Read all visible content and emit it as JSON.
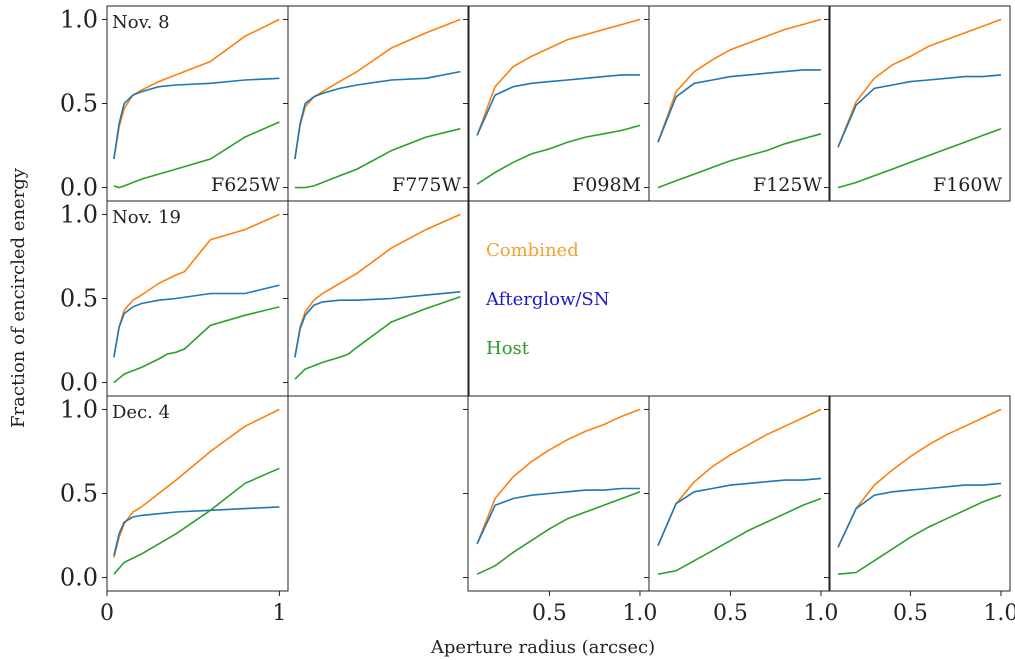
{
  "figure": {
    "ylabel": "Fraction of encircled energy",
    "xlabel": "Aperture radius (arcsec)",
    "legend": [
      {
        "label": "Combined",
        "color": "#f5a030"
      },
      {
        "label": "Afterglow/SN",
        "color": "#1a1acc"
      },
      {
        "label": "Host",
        "color": "#2a9a2a"
      }
    ],
    "series_colors": {
      "combined": "#ff7f0e",
      "afterglow": "#1f77b4",
      "host": "#2ca02c"
    }
  },
  "chart_data": [
    {
      "type": "line",
      "row": 0,
      "col": 0,
      "date": "Nov. 8",
      "filter": "F625W",
      "xlim": [
        0,
        1.05
      ],
      "ylim": [
        -0.08,
        1.08
      ],
      "yticks": [
        "0.0",
        "0.5",
        "1.0"
      ],
      "xticks": [],
      "series": [
        {
          "key": "combined",
          "x": [
            0.04,
            0.07,
            0.1,
            0.15,
            0.2,
            0.3,
            0.4,
            0.6,
            0.8,
            1.0
          ],
          "y": [
            0.17,
            0.36,
            0.47,
            0.55,
            0.58,
            0.63,
            0.67,
            0.75,
            0.9,
            1.0
          ]
        },
        {
          "key": "afterglow",
          "x": [
            0.04,
            0.07,
            0.1,
            0.15,
            0.2,
            0.3,
            0.4,
            0.6,
            0.8,
            1.0
          ],
          "y": [
            0.17,
            0.38,
            0.5,
            0.55,
            0.57,
            0.6,
            0.61,
            0.62,
            0.64,
            0.65
          ]
        },
        {
          "key": "host",
          "x": [
            0.04,
            0.07,
            0.1,
            0.15,
            0.2,
            0.3,
            0.4,
            0.6,
            0.8,
            1.0
          ],
          "y": [
            0.01,
            0.0,
            0.01,
            0.03,
            0.05,
            0.08,
            0.11,
            0.17,
            0.3,
            0.39
          ]
        }
      ]
    },
    {
      "type": "line",
      "row": 0,
      "col": 1,
      "date": "",
      "filter": "F775W",
      "xlim": [
        0,
        1.05
      ],
      "ylim": [
        -0.08,
        1.08
      ],
      "yticks": [],
      "xticks": [],
      "series": [
        {
          "key": "combined",
          "x": [
            0.04,
            0.07,
            0.1,
            0.15,
            0.2,
            0.3,
            0.4,
            0.6,
            0.8,
            1.0
          ],
          "y": [
            0.17,
            0.37,
            0.48,
            0.54,
            0.57,
            0.63,
            0.69,
            0.83,
            0.92,
            1.0
          ]
        },
        {
          "key": "afterglow",
          "x": [
            0.04,
            0.07,
            0.1,
            0.15,
            0.2,
            0.3,
            0.4,
            0.6,
            0.8,
            1.0
          ],
          "y": [
            0.17,
            0.38,
            0.5,
            0.54,
            0.56,
            0.59,
            0.61,
            0.64,
            0.65,
            0.69
          ]
        },
        {
          "key": "host",
          "x": [
            0.04,
            0.07,
            0.1,
            0.15,
            0.2,
            0.3,
            0.4,
            0.6,
            0.8,
            1.0
          ],
          "y": [
            0.0,
            0.0,
            0.0,
            0.01,
            0.03,
            0.07,
            0.11,
            0.22,
            0.3,
            0.35
          ]
        }
      ]
    },
    {
      "type": "line",
      "row": 0,
      "col": 2,
      "date": "",
      "filter": "F098M",
      "xlim": [
        0.05,
        1.05
      ],
      "ylim": [
        -0.08,
        1.08
      ],
      "yticks": [],
      "xticks": [],
      "series": [
        {
          "key": "combined",
          "x": [
            0.1,
            0.2,
            0.3,
            0.4,
            0.5,
            0.6,
            0.7,
            0.8,
            0.9,
            1.0
          ],
          "y": [
            0.31,
            0.6,
            0.72,
            0.78,
            0.83,
            0.88,
            0.91,
            0.94,
            0.97,
            1.0
          ]
        },
        {
          "key": "afterglow",
          "x": [
            0.1,
            0.2,
            0.3,
            0.4,
            0.5,
            0.6,
            0.7,
            0.8,
            0.9,
            1.0
          ],
          "y": [
            0.31,
            0.55,
            0.6,
            0.62,
            0.63,
            0.64,
            0.65,
            0.66,
            0.67,
            0.67
          ]
        },
        {
          "key": "host",
          "x": [
            0.1,
            0.2,
            0.3,
            0.4,
            0.5,
            0.6,
            0.7,
            0.8,
            0.9,
            1.0
          ],
          "y": [
            0.02,
            0.09,
            0.15,
            0.2,
            0.23,
            0.27,
            0.3,
            0.32,
            0.34,
            0.37
          ]
        }
      ]
    },
    {
      "type": "line",
      "row": 0,
      "col": 3,
      "date": "",
      "filter": "F125W",
      "xlim": [
        0.05,
        1.05
      ],
      "ylim": [
        -0.08,
        1.08
      ],
      "yticks": [],
      "xticks": [],
      "series": [
        {
          "key": "combined",
          "x": [
            0.1,
            0.2,
            0.3,
            0.4,
            0.5,
            0.6,
            0.7,
            0.8,
            0.9,
            1.0
          ],
          "y": [
            0.27,
            0.57,
            0.69,
            0.76,
            0.82,
            0.86,
            0.9,
            0.94,
            0.97,
            1.0
          ]
        },
        {
          "key": "afterglow",
          "x": [
            0.1,
            0.2,
            0.3,
            0.4,
            0.5,
            0.6,
            0.7,
            0.8,
            0.9,
            1.0
          ],
          "y": [
            0.27,
            0.54,
            0.62,
            0.64,
            0.66,
            0.67,
            0.68,
            0.69,
            0.7,
            0.7
          ]
        },
        {
          "key": "host",
          "x": [
            0.1,
            0.2,
            0.3,
            0.4,
            0.5,
            0.6,
            0.7,
            0.8,
            0.9,
            1.0
          ],
          "y": [
            0.0,
            0.04,
            0.08,
            0.12,
            0.16,
            0.19,
            0.22,
            0.26,
            0.29,
            0.32
          ]
        }
      ]
    },
    {
      "type": "line",
      "row": 0,
      "col": 4,
      "date": "",
      "filter": "F160W",
      "xlim": [
        0.05,
        1.05
      ],
      "ylim": [
        -0.08,
        1.08
      ],
      "yticks": [],
      "xticks": [],
      "series": [
        {
          "key": "combined",
          "x": [
            0.1,
            0.2,
            0.3,
            0.4,
            0.5,
            0.6,
            0.7,
            0.8,
            0.9,
            1.0
          ],
          "y": [
            0.24,
            0.51,
            0.65,
            0.73,
            0.78,
            0.84,
            0.88,
            0.92,
            0.96,
            1.0
          ]
        },
        {
          "key": "afterglow",
          "x": [
            0.1,
            0.2,
            0.3,
            0.4,
            0.5,
            0.6,
            0.7,
            0.8,
            0.9,
            1.0
          ],
          "y": [
            0.24,
            0.49,
            0.59,
            0.61,
            0.63,
            0.64,
            0.65,
            0.66,
            0.66,
            0.67
          ]
        },
        {
          "key": "host",
          "x": [
            0.1,
            0.2,
            0.3,
            0.4,
            0.5,
            0.6,
            0.7,
            0.8,
            0.9,
            1.0
          ],
          "y": [
            0.0,
            0.03,
            0.07,
            0.11,
            0.15,
            0.19,
            0.23,
            0.27,
            0.31,
            0.35
          ]
        }
      ]
    },
    {
      "type": "line",
      "row": 1,
      "col": 0,
      "date": "Nov. 19",
      "filter": "",
      "xlim": [
        0,
        1.05
      ],
      "ylim": [
        -0.08,
        1.08
      ],
      "yticks": [
        "0.0",
        "0.5",
        "1.0"
      ],
      "xticks": [],
      "series": [
        {
          "key": "combined",
          "x": [
            0.04,
            0.07,
            0.1,
            0.15,
            0.2,
            0.3,
            0.4,
            0.45,
            0.6,
            0.8,
            1.0
          ],
          "y": [
            0.15,
            0.33,
            0.43,
            0.49,
            0.52,
            0.59,
            0.64,
            0.66,
            0.85,
            0.91,
            1.0
          ]
        },
        {
          "key": "afterglow",
          "x": [
            0.04,
            0.07,
            0.1,
            0.15,
            0.2,
            0.3,
            0.4,
            0.6,
            0.8,
            1.0
          ],
          "y": [
            0.15,
            0.33,
            0.41,
            0.45,
            0.47,
            0.49,
            0.5,
            0.53,
            0.53,
            0.58
          ]
        },
        {
          "key": "host",
          "x": [
            0.04,
            0.1,
            0.2,
            0.3,
            0.35,
            0.4,
            0.45,
            0.6,
            0.8,
            1.0
          ],
          "y": [
            0.0,
            0.05,
            0.09,
            0.14,
            0.17,
            0.18,
            0.2,
            0.34,
            0.4,
            0.45
          ]
        }
      ]
    },
    {
      "type": "line",
      "row": 1,
      "col": 1,
      "date": "",
      "filter": "",
      "xlim": [
        0,
        1.05
      ],
      "ylim": [
        -0.08,
        1.08
      ],
      "yticks": [],
      "xticks": [],
      "series": [
        {
          "key": "combined",
          "x": [
            0.04,
            0.07,
            0.1,
            0.15,
            0.2,
            0.3,
            0.4,
            0.6,
            0.8,
            1.0
          ],
          "y": [
            0.15,
            0.33,
            0.42,
            0.49,
            0.53,
            0.59,
            0.65,
            0.8,
            0.91,
            1.0
          ]
        },
        {
          "key": "afterglow",
          "x": [
            0.04,
            0.07,
            0.1,
            0.15,
            0.2,
            0.3,
            0.4,
            0.6,
            0.8,
            1.0
          ],
          "y": [
            0.15,
            0.32,
            0.4,
            0.46,
            0.48,
            0.49,
            0.49,
            0.5,
            0.52,
            0.54
          ]
        },
        {
          "key": "host",
          "x": [
            0.04,
            0.1,
            0.2,
            0.3,
            0.35,
            0.4,
            0.6,
            0.8,
            1.0
          ],
          "y": [
            0.02,
            0.08,
            0.12,
            0.15,
            0.17,
            0.21,
            0.36,
            0.44,
            0.51
          ]
        }
      ]
    },
    {
      "type": "line",
      "row": 2,
      "col": 0,
      "date": "Dec. 4",
      "filter": "",
      "xlim": [
        0,
        1.05
      ],
      "ylim": [
        -0.08,
        1.08
      ],
      "yticks": [
        "0.0",
        "0.5",
        "1.0"
      ],
      "xticks": [
        "0",
        "1"
      ],
      "series": [
        {
          "key": "combined",
          "x": [
            0.04,
            0.07,
            0.1,
            0.15,
            0.2,
            0.3,
            0.4,
            0.6,
            0.8,
            1.0
          ],
          "y": [
            0.12,
            0.24,
            0.32,
            0.39,
            0.42,
            0.5,
            0.58,
            0.75,
            0.9,
            1.0
          ]
        },
        {
          "key": "afterglow",
          "x": [
            0.04,
            0.07,
            0.1,
            0.15,
            0.2,
            0.3,
            0.4,
            0.6,
            0.8,
            1.0
          ],
          "y": [
            0.13,
            0.26,
            0.33,
            0.36,
            0.37,
            0.38,
            0.39,
            0.4,
            0.41,
            0.42
          ]
        },
        {
          "key": "host",
          "x": [
            0.04,
            0.1,
            0.2,
            0.3,
            0.4,
            0.6,
            0.8,
            1.0
          ],
          "y": [
            0.02,
            0.09,
            0.14,
            0.2,
            0.26,
            0.4,
            0.56,
            0.65
          ]
        }
      ]
    },
    {
      "type": "line",
      "row": 2,
      "col": 2,
      "date": "",
      "filter": "",
      "xlim": [
        0.05,
        1.05
      ],
      "ylim": [
        -0.08,
        1.08
      ],
      "yticks": [],
      "xticks": [
        "0.5",
        "1.0"
      ],
      "series": [
        {
          "key": "combined",
          "x": [
            0.1,
            0.2,
            0.3,
            0.4,
            0.5,
            0.6,
            0.7,
            0.8,
            0.9,
            1.0
          ],
          "y": [
            0.2,
            0.47,
            0.6,
            0.69,
            0.76,
            0.82,
            0.87,
            0.91,
            0.96,
            1.0
          ]
        },
        {
          "key": "afterglow",
          "x": [
            0.1,
            0.2,
            0.3,
            0.4,
            0.5,
            0.6,
            0.7,
            0.8,
            0.9,
            1.0
          ],
          "y": [
            0.2,
            0.43,
            0.47,
            0.49,
            0.5,
            0.51,
            0.52,
            0.52,
            0.53,
            0.53
          ]
        },
        {
          "key": "host",
          "x": [
            0.1,
            0.2,
            0.3,
            0.4,
            0.5,
            0.6,
            0.7,
            0.8,
            0.9,
            1.0
          ],
          "y": [
            0.02,
            0.07,
            0.15,
            0.22,
            0.29,
            0.35,
            0.39,
            0.43,
            0.47,
            0.51
          ]
        }
      ]
    },
    {
      "type": "line",
      "row": 2,
      "col": 3,
      "date": "",
      "filter": "",
      "xlim": [
        0.05,
        1.05
      ],
      "ylim": [
        -0.08,
        1.08
      ],
      "yticks": [],
      "xticks": [
        "0.5",
        "1.0"
      ],
      "series": [
        {
          "key": "combined",
          "x": [
            0.1,
            0.2,
            0.3,
            0.4,
            0.5,
            0.6,
            0.7,
            0.8,
            0.9,
            1.0
          ],
          "y": [
            0.19,
            0.44,
            0.57,
            0.66,
            0.73,
            0.79,
            0.85,
            0.9,
            0.95,
            1.0
          ]
        },
        {
          "key": "afterglow",
          "x": [
            0.1,
            0.2,
            0.3,
            0.4,
            0.5,
            0.6,
            0.7,
            0.8,
            0.9,
            1.0
          ],
          "y": [
            0.19,
            0.44,
            0.51,
            0.53,
            0.55,
            0.56,
            0.57,
            0.58,
            0.58,
            0.59
          ]
        },
        {
          "key": "host",
          "x": [
            0.1,
            0.2,
            0.3,
            0.4,
            0.5,
            0.6,
            0.7,
            0.8,
            0.9,
            1.0
          ],
          "y": [
            0.02,
            0.04,
            0.1,
            0.16,
            0.22,
            0.28,
            0.33,
            0.38,
            0.43,
            0.47
          ]
        }
      ]
    },
    {
      "type": "line",
      "row": 2,
      "col": 4,
      "date": "",
      "filter": "",
      "xlim": [
        0.05,
        1.05
      ],
      "ylim": [
        -0.08,
        1.08
      ],
      "yticks": [],
      "xticks": [
        "0.5",
        "1.0"
      ],
      "series": [
        {
          "key": "combined",
          "x": [
            0.1,
            0.2,
            0.3,
            0.4,
            0.5,
            0.6,
            0.7,
            0.8,
            0.9,
            1.0
          ],
          "y": [
            0.18,
            0.41,
            0.55,
            0.64,
            0.72,
            0.79,
            0.85,
            0.9,
            0.95,
            1.0
          ]
        },
        {
          "key": "afterglow",
          "x": [
            0.1,
            0.2,
            0.3,
            0.4,
            0.5,
            0.6,
            0.7,
            0.8,
            0.9,
            1.0
          ],
          "y": [
            0.18,
            0.41,
            0.49,
            0.51,
            0.52,
            0.53,
            0.54,
            0.55,
            0.55,
            0.56
          ]
        },
        {
          "key": "host",
          "x": [
            0.1,
            0.2,
            0.3,
            0.4,
            0.5,
            0.6,
            0.7,
            0.8,
            0.9,
            1.0
          ],
          "y": [
            0.02,
            0.03,
            0.1,
            0.17,
            0.24,
            0.3,
            0.35,
            0.4,
            0.45,
            0.49
          ]
        }
      ]
    }
  ]
}
